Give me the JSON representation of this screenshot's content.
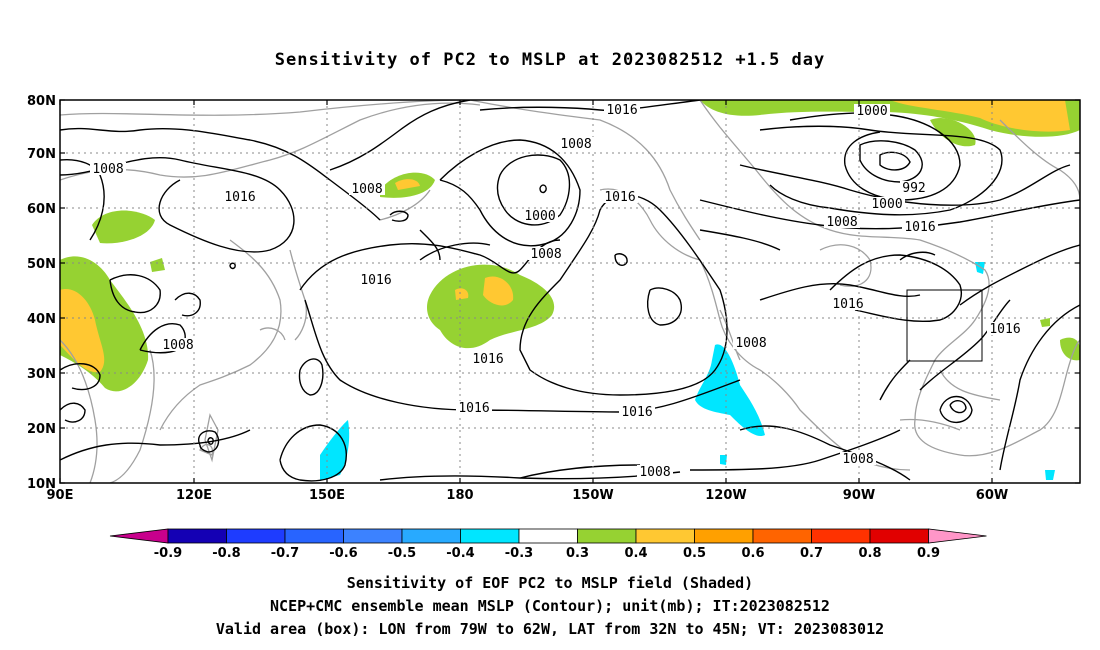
{
  "title": "Sensitivity of PC2 to MSLP at 2023082512 +1.5 day",
  "map": {
    "lat_labels": [
      "80N",
      "70N",
      "60N",
      "50N",
      "40N",
      "30N",
      "20N",
      "10N"
    ],
    "lon_labels": [
      "90E",
      "120E",
      "150E",
      "180",
      "150W",
      "120W",
      "90W",
      "60W"
    ],
    "contour_labels": [
      {
        "text": "1016",
        "id": "c1"
      },
      {
        "text": "1008",
        "id": "c2"
      },
      {
        "text": "1016",
        "id": "c3"
      },
      {
        "text": "1008",
        "id": "c4"
      },
      {
        "text": "1000",
        "id": "c5"
      },
      {
        "text": "1016",
        "id": "c6"
      },
      {
        "text": "1008",
        "id": "c7"
      },
      {
        "text": "1016",
        "id": "c8"
      },
      {
        "text": "1016",
        "id": "c9"
      },
      {
        "text": "1008",
        "id": "c10"
      },
      {
        "text": "1016",
        "id": "c11"
      },
      {
        "text": "1016",
        "id": "c12"
      },
      {
        "text": "1008",
        "id": "c13"
      },
      {
        "text": "1008",
        "id": "c14"
      },
      {
        "text": "1000",
        "id": "c15"
      },
      {
        "text": "992",
        "id": "c16"
      },
      {
        "text": "1000",
        "id": "c17"
      },
      {
        "text": "1008",
        "id": "c18"
      },
      {
        "text": "1016",
        "id": "c19"
      },
      {
        "text": "1016",
        "id": "c20"
      },
      {
        "text": "1016",
        "id": "c21"
      },
      {
        "text": "1008",
        "id": "c22"
      },
      {
        "text": "1008",
        "id": "c23"
      }
    ],
    "valid_box": {
      "lon_w": "79W",
      "lon_e": "62W",
      "lat_s": "32N",
      "lat_n": "45N"
    }
  },
  "colorbar": {
    "labels": [
      "-0.9",
      "-0.8",
      "-0.7",
      "-0.6",
      "-0.5",
      "-0.4",
      "-0.3",
      "0.3",
      "0.4",
      "0.5",
      "0.6",
      "0.7",
      "0.8",
      "0.9"
    ],
    "colors": [
      "#1400b4",
      "#1e3cff",
      "#2864ff",
      "#3c82ff",
      "#28aaff",
      "#00e6ff",
      "#ffffff",
      "#96d232",
      "#ffc832",
      "#ffa000",
      "#ff6400",
      "#ff3200",
      "#e10000"
    ],
    "low_arrow_color": "#c8008c",
    "high_arrow_color": "#ff96c8"
  },
  "captions": {
    "line1": "Sensitivity of EOF PC2 to MSLP field (Shaded)",
    "line2": "NCEP+CMC ensemble mean MSLP (Contour); unit(mb); IT:2023082512",
    "line3": "Valid area (box): LON from 79W to 62W, LAT from 32N to 45N; VT: 2023083012"
  }
}
